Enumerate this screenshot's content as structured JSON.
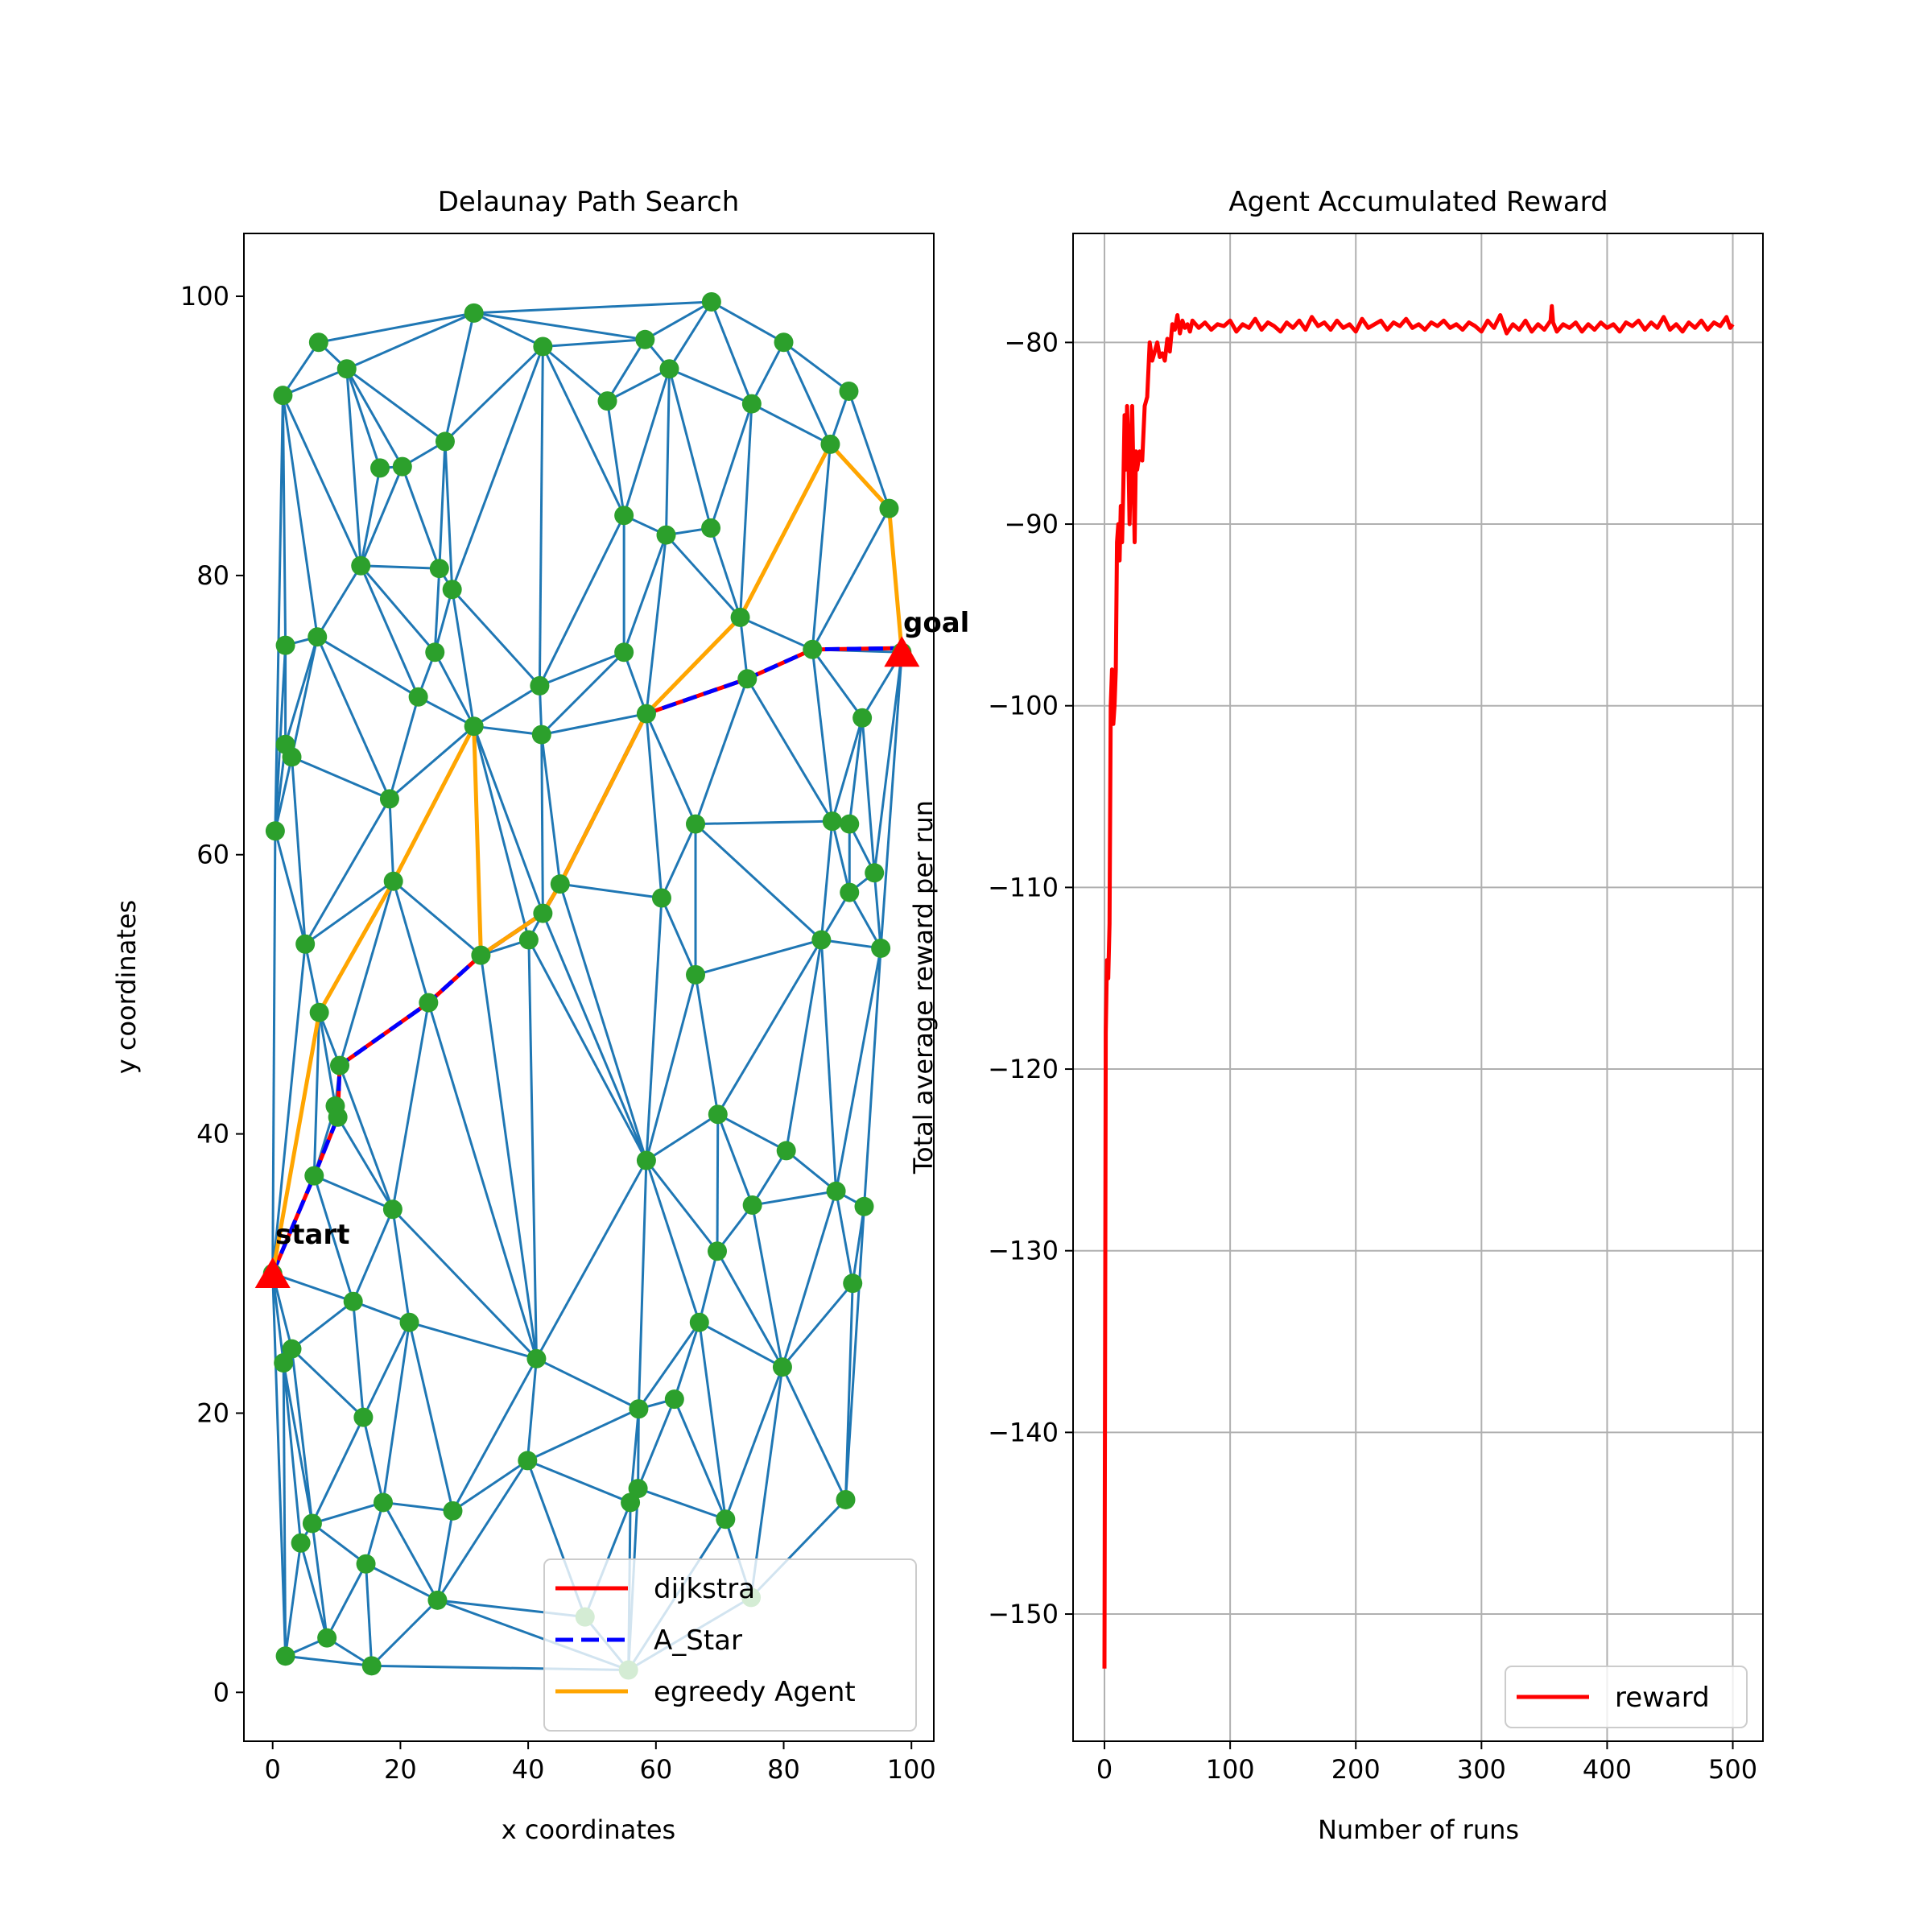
{
  "colors": {
    "edge": "#1f77b4",
    "node": "#2ca02c",
    "dijkstra": "#ff0000",
    "astar": "#0000ff",
    "agent": "#ffa500",
    "reward": "#ff0000",
    "marker": "#ff0000",
    "grid": "#b0b0b0"
  },
  "chart_data": [
    {
      "type": "scatter",
      "title": "Delaunay Path Search",
      "xlabel": "x coordinates",
      "ylabel": "y coordinates",
      "xlim": [
        -4.5,
        103.5
      ],
      "ylim": [
        -3.5,
        104.5
      ],
      "xticks": [
        0,
        20,
        40,
        60,
        80,
        100
      ],
      "yticks": [
        0,
        20,
        40,
        60,
        80,
        100
      ],
      "grid": false,
      "legend_position": "lower-right",
      "annotations": [
        {
          "text": "start",
          "x": 0,
          "y": 30
        },
        {
          "text": "goal",
          "x": 98.5,
          "y": 74.5
        }
      ],
      "nodes": [
        [
          31.5,
          98.8
        ],
        [
          68.7,
          99.6
        ],
        [
          7.2,
          96.7
        ],
        [
          11.6,
          94.8
        ],
        [
          42.3,
          96.4
        ],
        [
          58.3,
          96.9
        ],
        [
          80.0,
          96.7
        ],
        [
          1.6,
          92.9
        ],
        [
          52.4,
          92.5
        ],
        [
          62.1,
          94.8
        ],
        [
          75.0,
          92.3
        ],
        [
          90.2,
          93.2
        ],
        [
          27.0,
          89.6
        ],
        [
          16.8,
          87.7
        ],
        [
          20.3,
          87.8
        ],
        [
          87.3,
          89.4
        ],
        [
          96.5,
          84.8
        ],
        [
          55.0,
          84.3
        ],
        [
          68.6,
          83.4
        ],
        [
          61.6,
          82.9
        ],
        [
          13.8,
          80.7
        ],
        [
          26.1,
          80.5
        ],
        [
          28.1,
          79.0
        ],
        [
          2.0,
          75.0
        ],
        [
          7.0,
          75.6
        ],
        [
          73.2,
          77.0
        ],
        [
          25.4,
          74.5
        ],
        [
          55.0,
          74.5
        ],
        [
          84.5,
          74.7
        ],
        [
          98.5,
          74.5
        ],
        [
          22.8,
          71.3
        ],
        [
          41.8,
          72.1
        ],
        [
          74.3,
          72.6
        ],
        [
          58.5,
          70.1
        ],
        [
          31.5,
          69.2
        ],
        [
          2.0,
          67.9
        ],
        [
          3.0,
          67.0
        ],
        [
          42.1,
          68.6
        ],
        [
          18.3,
          64.0
        ],
        [
          0.4,
          61.7
        ],
        [
          92.3,
          69.8
        ],
        [
          66.2,
          62.2
        ],
        [
          87.6,
          62.4
        ],
        [
          90.3,
          62.2
        ],
        [
          94.2,
          58.7
        ],
        [
          18.9,
          58.1
        ],
        [
          45.0,
          57.9
        ],
        [
          60.9,
          56.9
        ],
        [
          90.3,
          57.3
        ],
        [
          42.3,
          55.8
        ],
        [
          85.9,
          53.9
        ],
        [
          5.1,
          53.6
        ],
        [
          95.2,
          53.3
        ],
        [
          32.6,
          52.8
        ],
        [
          40.1,
          53.9
        ],
        [
          66.2,
          51.4
        ],
        [
          24.4,
          49.4
        ],
        [
          7.3,
          48.7
        ],
        [
          10.5,
          44.9
        ],
        [
          9.8,
          42.0
        ],
        [
          10.2,
          41.2
        ],
        [
          69.7,
          41.4
        ],
        [
          6.5,
          37.0
        ],
        [
          80.4,
          38.8
        ],
        [
          58.5,
          38.1
        ],
        [
          88.2,
          35.9
        ],
        [
          92.6,
          34.8
        ],
        [
          75.1,
          34.9
        ],
        [
          18.8,
          34.6
        ],
        [
          0.0,
          30.0
        ],
        [
          69.6,
          31.6
        ],
        [
          12.6,
          28.0
        ],
        [
          90.8,
          29.3
        ],
        [
          21.4,
          26.5
        ],
        [
          66.8,
          26.5
        ],
        [
          3.0,
          24.6
        ],
        [
          1.7,
          23.6
        ],
        [
          41.3,
          23.9
        ],
        [
          79.8,
          23.3
        ],
        [
          57.3,
          20.3
        ],
        [
          62.9,
          21.0
        ],
        [
          14.2,
          19.7
        ],
        [
          39.9,
          16.6
        ],
        [
          17.3,
          13.6
        ],
        [
          28.2,
          13.0
        ],
        [
          56.0,
          13.6
        ],
        [
          57.2,
          14.6
        ],
        [
          70.9,
          12.4
        ],
        [
          89.7,
          13.8
        ],
        [
          6.2,
          12.1
        ],
        [
          4.4,
          10.7
        ],
        [
          14.6,
          9.2
        ],
        [
          25.8,
          6.6
        ],
        [
          48.9,
          5.4
        ],
        [
          74.9,
          6.8
        ],
        [
          8.5,
          3.9
        ],
        [
          2.0,
          2.6
        ],
        [
          15.5,
          1.9
        ],
        [
          55.7,
          1.6
        ]
      ],
      "series": [
        {
          "name": "dijkstra",
          "points": [
            [
              0,
              30
            ],
            [
              6.5,
              37.0
            ],
            [
              10.2,
              41.2
            ],
            [
              10.5,
              44.9
            ],
            [
              24.4,
              49.4
            ],
            [
              32.6,
              52.8
            ],
            [
              42.3,
              55.8
            ],
            [
              45.0,
              57.9
            ],
            [
              58.5,
              70.1
            ],
            [
              74.3,
              72.6
            ],
            [
              84.5,
              74.7
            ],
            [
              98.5,
              74.8
            ]
          ]
        },
        {
          "name": "A_Star",
          "points": [
            [
              0,
              30
            ],
            [
              6.5,
              37.0
            ],
            [
              10.2,
              41.2
            ],
            [
              10.5,
              44.9
            ],
            [
              24.4,
              49.4
            ],
            [
              32.6,
              52.8
            ],
            [
              42.3,
              55.8
            ],
            [
              45.0,
              57.9
            ],
            [
              58.5,
              70.1
            ],
            [
              74.3,
              72.6
            ],
            [
              84.5,
              74.7
            ],
            [
              98.5,
              74.8
            ]
          ]
        },
        {
          "name": "egreedy Agent",
          "points": [
            [
              0,
              30
            ],
            [
              7.3,
              48.7
            ],
            [
              18.9,
              58.1
            ],
            [
              31.5,
              69.2
            ],
            [
              32.6,
              52.8
            ],
            [
              42.3,
              55.8
            ],
            [
              45.0,
              57.9
            ],
            [
              58.5,
              70.1
            ],
            [
              73.2,
              77.0
            ],
            [
              87.3,
              89.4
            ],
            [
              96.5,
              84.8
            ],
            [
              98.5,
              74.5
            ]
          ]
        }
      ],
      "legend": [
        "dijkstra",
        "A_Star",
        "egreedy Agent"
      ]
    },
    {
      "type": "line",
      "title": "Agent Accumulated Reward",
      "xlabel": "Number of runs",
      "ylabel": "Total average reward per run",
      "xlim": [
        -25,
        524
      ],
      "ylim": [
        -157,
        -74
      ],
      "xticks": [
        0,
        100,
        200,
        300,
        400,
        500
      ],
      "yticks": [
        -80,
        -90,
        -100,
        -110,
        -120,
        -130,
        -140,
        -150
      ],
      "grid": true,
      "legend_position": "lower-right",
      "series": [
        {
          "name": "reward",
          "points": [
            [
              0,
              -153
            ],
            [
              1,
              -118
            ],
            [
              2,
              -114
            ],
            [
              3,
              -115
            ],
            [
              4,
              -112
            ],
            [
              5,
              -100
            ],
            [
              6,
              -98
            ],
            [
              7,
              -101
            ],
            [
              8,
              -100
            ],
            [
              9,
              -98
            ],
            [
              10,
              -91
            ],
            [
              11,
              -90
            ],
            [
              12,
              -92
            ],
            [
              13,
              -89
            ],
            [
              14,
              -91
            ],
            [
              15,
              -88
            ],
            [
              16,
              -84
            ],
            [
              17,
              -87
            ],
            [
              18,
              -83.5
            ],
            [
              19,
              -86
            ],
            [
              20,
              -90
            ],
            [
              21,
              -86
            ],
            [
              22,
              -83.5
            ],
            [
              23,
              -87
            ],
            [
              24,
              -91
            ],
            [
              25,
              -86
            ],
            [
              26,
              -87
            ],
            [
              27,
              -86.5
            ],
            [
              28,
              -86
            ],
            [
              30,
              -86.5
            ],
            [
              32,
              -83.5
            ],
            [
              34,
              -83
            ],
            [
              36,
              -80
            ],
            [
              38,
              -81
            ],
            [
              40,
              -80.5
            ],
            [
              42,
              -80
            ],
            [
              44,
              -80.8
            ],
            [
              46,
              -80.6
            ],
            [
              48,
              -81
            ],
            [
              50,
              -79.8
            ],
            [
              52,
              -80.5
            ],
            [
              54,
              -79
            ],
            [
              56,
              -79.3
            ],
            [
              58,
              -78.5
            ],
            [
              60,
              -79.5
            ],
            [
              62,
              -78.8
            ],
            [
              64,
              -79.2
            ],
            [
              66,
              -79
            ],
            [
              68,
              -79.4
            ],
            [
              70,
              -78.8
            ],
            [
              75,
              -79.2
            ],
            [
              80,
              -78.9
            ],
            [
              85,
              -79.3
            ],
            [
              90,
              -79
            ],
            [
              95,
              -79.1
            ],
            [
              100,
              -78.8
            ],
            [
              105,
              -79.4
            ],
            [
              110,
              -79
            ],
            [
              115,
              -79.2
            ],
            [
              120,
              -78.7
            ],
            [
              125,
              -79.3
            ],
            [
              130,
              -78.9
            ],
            [
              135,
              -79.1
            ],
            [
              140,
              -79.4
            ],
            [
              145,
              -78.9
            ],
            [
              150,
              -79.2
            ],
            [
              155,
              -78.8
            ],
            [
              160,
              -79.3
            ],
            [
              165,
              -78.6
            ],
            [
              170,
              -79.1
            ],
            [
              175,
              -78.9
            ],
            [
              180,
              -79.3
            ],
            [
              185,
              -78.8
            ],
            [
              190,
              -79.2
            ],
            [
              195,
              -79
            ],
            [
              200,
              -79.4
            ],
            [
              205,
              -78.7
            ],
            [
              210,
              -79.2
            ],
            [
              215,
              -79
            ],
            [
              220,
              -78.8
            ],
            [
              225,
              -79.3
            ],
            [
              230,
              -78.9
            ],
            [
              235,
              -79.1
            ],
            [
              240,
              -78.7
            ],
            [
              245,
              -79.2
            ],
            [
              250,
              -79
            ],
            [
              255,
              -79.3
            ],
            [
              260,
              -78.9
            ],
            [
              265,
              -79.1
            ],
            [
              270,
              -78.8
            ],
            [
              275,
              -79.2
            ],
            [
              280,
              -79
            ],
            [
              285,
              -79.3
            ],
            [
              290,
              -78.9
            ],
            [
              295,
              -79.1
            ],
            [
              300,
              -79.4
            ],
            [
              305,
              -78.8
            ],
            [
              310,
              -79.2
            ],
            [
              315,
              -78.5
            ],
            [
              320,
              -79.5
            ],
            [
              325,
              -79
            ],
            [
              330,
              -79.3
            ],
            [
              335,
              -78.8
            ],
            [
              340,
              -79.4
            ],
            [
              345,
              -79
            ],
            [
              350,
              -79.3
            ],
            [
              355,
              -78.8
            ],
            [
              356,
              -78
            ],
            [
              357,
              -78.9
            ],
            [
              360,
              -79.4
            ],
            [
              365,
              -79
            ],
            [
              370,
              -79.2
            ],
            [
              375,
              -78.9
            ],
            [
              380,
              -79.4
            ],
            [
              385,
              -79
            ],
            [
              390,
              -79.3
            ],
            [
              395,
              -78.9
            ],
            [
              400,
              -79.2
            ],
            [
              405,
              -79
            ],
            [
              410,
              -79.4
            ],
            [
              415,
              -78.9
            ],
            [
              420,
              -79.1
            ],
            [
              425,
              -78.8
            ],
            [
              430,
              -79.3
            ],
            [
              435,
              -78.9
            ],
            [
              440,
              -79.2
            ],
            [
              445,
              -78.6
            ],
            [
              450,
              -79.3
            ],
            [
              455,
              -79
            ],
            [
              460,
              -79.4
            ],
            [
              465,
              -78.9
            ],
            [
              470,
              -79.2
            ],
            [
              475,
              -78.8
            ],
            [
              480,
              -79.3
            ],
            [
              485,
              -78.9
            ],
            [
              490,
              -79.1
            ],
            [
              495,
              -78.6
            ],
            [
              498,
              -79.2
            ],
            [
              500,
              -79
            ]
          ]
        }
      ],
      "legend": [
        "reward"
      ]
    }
  ]
}
